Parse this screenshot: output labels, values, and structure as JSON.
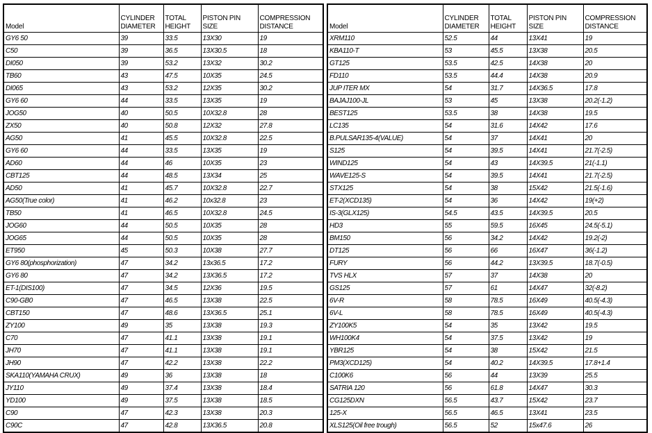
{
  "headers": [
    "Model",
    "CYLINDER\nDIAMETER",
    "TOTAL\nHEIGHT",
    "PISTON PIN\nSIZE",
    "COMPRESSION\nDISTANCE"
  ],
  "left_table": {
    "rows": [
      [
        "GY6 50",
        "39",
        "33.5",
        "13X30",
        "19"
      ],
      [
        "C50",
        "39",
        "36.5",
        "13X30.5",
        "18"
      ],
      [
        "DI050",
        "39",
        "53.2",
        "13X32",
        "30.2"
      ],
      [
        "TB60",
        "43",
        "47.5",
        "10X35",
        "24.5"
      ],
      [
        "DI065",
        "43",
        "53.2",
        "12X35",
        "30.2"
      ],
      [
        "GY6 60",
        "44",
        "33.5",
        "13X35",
        "19"
      ],
      [
        "JOG50",
        "40",
        "50.5",
        "10X32.8",
        "28"
      ],
      [
        "ZX50",
        "40",
        "50.8",
        "12X32",
        "27.8"
      ],
      [
        "AG50",
        "41",
        "45.5",
        "10X32.8",
        "22.5"
      ],
      [
        "GY6 60",
        "44",
        "33.5",
        "13X35",
        "19"
      ],
      [
        "AD60",
        "44",
        "46",
        "10X35",
        "23"
      ],
      [
        "CBT125",
        "44",
        "48.5",
        "13X34",
        "25"
      ],
      [
        "AD50",
        "41",
        "45.7",
        "10X32.8",
        "22.7"
      ],
      [
        "AG50(True color)",
        "41",
        "46.2",
        "10x32.8",
        "23"
      ],
      [
        "TB50",
        "41",
        "46.5",
        "10X32.8",
        "24.5"
      ],
      [
        "JOG60",
        "44",
        "50.5",
        "10X35",
        "28"
      ],
      [
        "JOG65",
        "44",
        "50.5",
        "10X35",
        "28"
      ],
      [
        "ET950",
        "45",
        "50.3",
        "10X38",
        "27.7"
      ],
      [
        "GY6 80(phosphorization)",
        "47",
        "34.2",
        "13x36.5",
        "17.2"
      ],
      [
        "GY6 80",
        "47",
        "34.2",
        "13X36.5",
        "17.2"
      ],
      [
        "ET-1(DIS100)",
        "47",
        "34.5",
        "12X36",
        "19.5"
      ],
      [
        "C90-GB0",
        "47",
        "46.5",
        "13X38",
        "22.5"
      ],
      [
        "CBT150",
        "47",
        "48.6",
        "13X36.5",
        "25.1"
      ],
      [
        "ZY100",
        "49",
        "35",
        "13X38",
        "19.3"
      ],
      [
        "C70",
        "47",
        "41.1",
        "13X38",
        "19.1"
      ],
      [
        "JH70",
        "47",
        "41.1",
        "13X38",
        "19.1"
      ],
      [
        "JH90",
        "47",
        "42.2",
        "13X38",
        "22.2"
      ],
      [
        "SKA110(YAMAHA CRUX)",
        "49",
        "36",
        "13X38",
        "18"
      ],
      [
        "JY110",
        "49",
        "37.4",
        "13X38",
        "18.4"
      ],
      [
        "YD100",
        "49",
        "37.5",
        "13X38",
        "18.5"
      ],
      [
        "C90",
        "47",
        "42.3",
        "13X38",
        "20.3"
      ],
      [
        "C90C",
        "47",
        "42.8",
        "13X36.5",
        "20.8"
      ]
    ]
  },
  "right_table": {
    "rows": [
      [
        "XRM110",
        "52.5",
        "44",
        "13X41",
        "19"
      ],
      [
        "KBA110-T",
        "53",
        "45.5",
        "13X38",
        "20.5"
      ],
      [
        "GT125",
        "53.5",
        "42.5",
        "14X38",
        "20"
      ],
      [
        "FD110",
        "53.5",
        "44.4",
        "14X38",
        "20.9"
      ],
      [
        "JUP ITER MX",
        "54",
        "31.7",
        "14X36.5",
        "17.8"
      ],
      [
        "BAJAJ100-JL",
        "53",
        "45",
        "13X38",
        "20.2(-1.2)"
      ],
      [
        "BEST125",
        "53.5",
        "38",
        "14X38",
        "19.5"
      ],
      [
        "LC135",
        "54",
        "31.6",
        "14X42",
        "17.6"
      ],
      [
        "B.PULSAR135-4(VALUE)",
        "54",
        "37",
        "14X41",
        "20"
      ],
      [
        "S125",
        "54",
        "39.5",
        "14X41",
        "21.7(-2.5)"
      ],
      [
        "WIND125",
        "54",
        "43",
        "14X39.5",
        "21(-1.1)"
      ],
      [
        "WAVE125-S",
        "54",
        "39.5",
        "14X41",
        "21.7(-2.5)"
      ],
      [
        "STX125",
        "54",
        "38",
        "15X42",
        "21.5(-1.6)"
      ],
      [
        "ET-2(XCD135)",
        "54",
        "36",
        "14X42",
        "19(+2)"
      ],
      [
        "IS-3(GLX125)",
        "54.5",
        "43.5",
        "14X39.5",
        "20.5"
      ],
      [
        "HD3",
        "55",
        "59.5",
        "16X45",
        "24.5(-5.1)"
      ],
      [
        "BM150",
        "56",
        "34.2",
        "14X42",
        "19.2(-2)"
      ],
      [
        "DT125",
        "56",
        "66",
        "16X47",
        "36(-1.2)"
      ],
      [
        "FURY",
        "56",
        "44.2",
        "13X39.5",
        "18.7(-0.5)"
      ],
      [
        "TVS HLX",
        "57",
        "37",
        "14X38",
        "20"
      ],
      [
        "GS125",
        "57",
        "61",
        "14X47",
        "32(-8.2)"
      ],
      [
        "6V-R",
        "58",
        "78.5",
        "16X49",
        "40.5(-4.3)"
      ],
      [
        "6V-L",
        "58",
        "78.5",
        "16X49",
        "40.5(-4.3)"
      ],
      [
        "ZY100K5",
        "54",
        "35",
        "13X42",
        "19.5"
      ],
      [
        "WH100K4",
        "54",
        "37.5",
        "13X42",
        "19"
      ],
      [
        "YBR125",
        "54",
        "38",
        "15X42",
        "21.5"
      ],
      [
        "PM3(XCD125)",
        "54",
        "40.2",
        "14X39.5",
        "17.8+1.4"
      ],
      [
        "C100K6",
        "56",
        "44",
        "13X39",
        "25.5"
      ],
      [
        "SATRIA 120",
        "56",
        "61.8",
        "14X47",
        "30.3"
      ],
      [
        "CG125DXN",
        "56.5",
        "43.7",
        "15X42",
        "23.7"
      ],
      [
        "125-X",
        "56.5",
        "46.5",
        "13X41",
        "23.5"
      ],
      [
        "XLS125(Oil free trough)",
        "56.5",
        "52",
        "15x47.6",
        "26"
      ]
    ]
  }
}
